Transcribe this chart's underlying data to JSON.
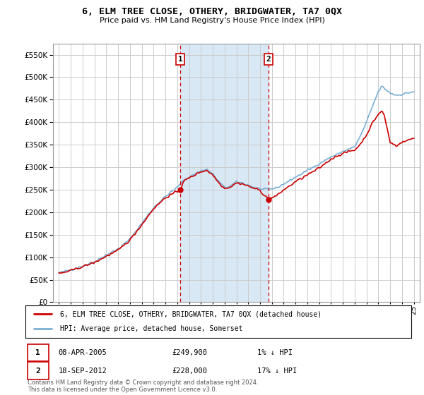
{
  "title": "6, ELM TREE CLOSE, OTHERY, BRIDGWATER, TA7 0QX",
  "subtitle": "Price paid vs. HM Land Registry's House Price Index (HPI)",
  "legend_label1": "6, ELM TREE CLOSE, OTHERY, BRIDGWATER, TA7 0QX (detached house)",
  "legend_label2": "HPI: Average price, detached house, Somerset",
  "annotation1_date": "08-APR-2005",
  "annotation1_price": "£249,900",
  "annotation1_hpi": "1% ↓ HPI",
  "annotation2_date": "18-SEP-2012",
  "annotation2_price": "£228,000",
  "annotation2_hpi": "17% ↓ HPI",
  "footnote": "Contains HM Land Registry data © Crown copyright and database right 2024.\nThis data is licensed under the Open Government Licence v3.0.",
  "hpi_color": "#7BAFD4",
  "price_color": "#CC0000",
  "annotation_color": "#CC0000",
  "background_color": "#ffffff",
  "grid_color": "#cccccc",
  "shaded_region_color": "#D8E8F5",
  "ylim": [
    0,
    575000
  ],
  "yticks": [
    0,
    50000,
    100000,
    150000,
    200000,
    250000,
    300000,
    350000,
    400000,
    450000,
    500000,
    550000
  ],
  "sale1_x": 2005.27,
  "sale1_y": 249900,
  "sale2_x": 2012.72,
  "sale2_y": 228000,
  "xmin": 1994.5,
  "xmax": 2025.5
}
